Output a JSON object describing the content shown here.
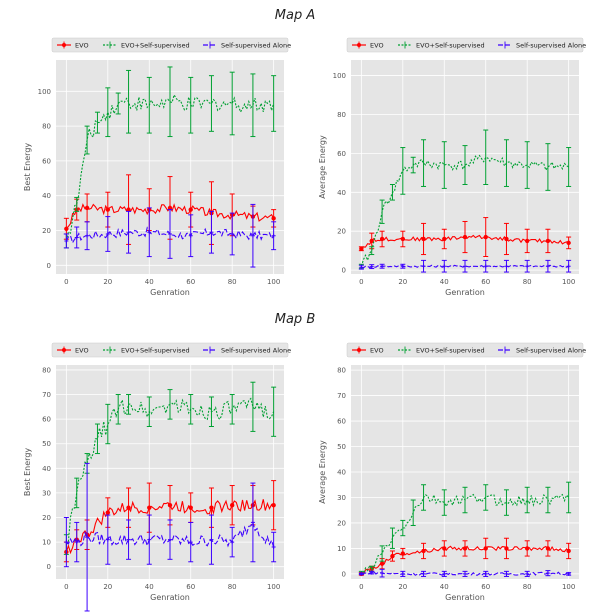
{
  "titles": [
    "Map A",
    "Map B"
  ],
  "colors": {
    "evo": "#ff0000",
    "evo_ss": "#00a032",
    "ss_alone": "#3c00ff"
  },
  "chart_data": [
    {
      "type": "line",
      "title": "",
      "xlabel": "Genration",
      "ylabel": "Best Energy",
      "xlim": [
        -5,
        105
      ],
      "ylim": [
        -5,
        118
      ],
      "xticks": [
        0,
        20,
        40,
        60,
        80,
        100
      ],
      "yticks": [
        0,
        20,
        40,
        60,
        80,
        100
      ],
      "legend_position": "top",
      "series": [
        {
          "name": "EVO",
          "x": [
            0,
            5,
            10,
            20,
            30,
            40,
            50,
            60,
            70,
            80,
            90,
            100
          ],
          "y": [
            21,
            32,
            33,
            32,
            32,
            32,
            33,
            32,
            30,
            29,
            28,
            27
          ],
          "err": [
            6,
            6,
            8,
            10,
            20,
            12,
            18,
            10,
            18,
            12,
            6,
            5
          ]
        },
        {
          "name": "EVO+Self-supervised",
          "x": [
            0,
            5,
            10,
            15,
            20,
            25,
            30,
            40,
            50,
            60,
            70,
            80,
            90,
            100
          ],
          "y": [
            14,
            35,
            72,
            82,
            88,
            93,
            94,
            92,
            94,
            92,
            93,
            93,
            92,
            93
          ],
          "err": [
            4,
            4,
            8,
            6,
            14,
            6,
            18,
            16,
            20,
            16,
            16,
            18,
            18,
            16
          ]
        },
        {
          "name": "Self-supervised Alone",
          "x": [
            0,
            5,
            10,
            20,
            30,
            40,
            50,
            60,
            70,
            80,
            90,
            100
          ],
          "y": [
            14,
            16,
            17,
            18,
            19,
            19,
            18,
            17,
            19,
            18,
            17,
            17
          ],
          "err": [
            4,
            6,
            8,
            10,
            12,
            14,
            14,
            12,
            12,
            12,
            18,
            8
          ]
        }
      ]
    },
    {
      "type": "line",
      "title": "",
      "xlabel": "Genration",
      "ylabel": "Average Energy",
      "xlim": [
        -5,
        105
      ],
      "ylim": [
        -2,
        108
      ],
      "xticks": [
        0,
        20,
        40,
        60,
        80,
        100
      ],
      "yticks": [
        0,
        20,
        40,
        60,
        80,
        100
      ],
      "legend_position": "top",
      "series": [
        {
          "name": "EVO",
          "x": [
            0,
            5,
            10,
            20,
            30,
            40,
            50,
            60,
            70,
            80,
            90,
            100
          ],
          "y": [
            11,
            15,
            16,
            16,
            16,
            16,
            17,
            17,
            16,
            15,
            15,
            14
          ],
          "err": [
            1,
            4,
            4,
            4,
            8,
            5,
            8,
            10,
            8,
            6,
            6,
            3
          ]
        },
        {
          "name": "EVO+Self-supervised",
          "x": [
            0,
            5,
            10,
            15,
            20,
            25,
            30,
            40,
            50,
            60,
            70,
            80,
            90,
            100
          ],
          "y": [
            2,
            10,
            30,
            40,
            51,
            54,
            55,
            54,
            54,
            58,
            55,
            54,
            53,
            53
          ],
          "err": [
            1,
            2,
            6,
            4,
            12,
            4,
            12,
            12,
            10,
            14,
            12,
            12,
            12,
            10
          ]
        },
        {
          "name": "Self-supervised Alone",
          "x": [
            0,
            5,
            10,
            20,
            30,
            40,
            50,
            60,
            70,
            80,
            90,
            100
          ],
          "y": [
            1.5,
            1.8,
            2,
            2,
            2,
            2,
            2,
            2,
            2,
            2,
            2,
            2
          ],
          "err": [
            1,
            1,
            1,
            1,
            3,
            3,
            3,
            3,
            3,
            3,
            3,
            3
          ]
        }
      ]
    },
    {
      "type": "line",
      "title": "",
      "xlabel": "Genration",
      "ylabel": "Best Energy",
      "xlim": [
        -5,
        105
      ],
      "ylim": [
        -5,
        82
      ],
      "xticks": [
        0,
        20,
        40,
        60,
        80,
        100
      ],
      "yticks": [
        0,
        10,
        20,
        30,
        40,
        50,
        60,
        70,
        80
      ],
      "legend_position": "top",
      "series": [
        {
          "name": "EVO",
          "x": [
            0,
            5,
            10,
            20,
            30,
            40,
            50,
            60,
            70,
            80,
            90,
            100
          ],
          "y": [
            6,
            11,
            13,
            22,
            24,
            24,
            25,
            24,
            24,
            25,
            25,
            25
          ],
          "err": [
            4,
            4,
            6,
            6,
            8,
            10,
            8,
            6,
            8,
            8,
            8,
            10
          ]
        },
        {
          "name": "EVO+Self-supervised",
          "x": [
            0,
            5,
            10,
            15,
            20,
            25,
            30,
            40,
            50,
            60,
            70,
            80,
            90,
            100
          ],
          "y": [
            9,
            30,
            42,
            52,
            58,
            64,
            66,
            63,
            66,
            64,
            63,
            64,
            65,
            63
          ],
          "err": [
            4,
            6,
            4,
            6,
            8,
            6,
            4,
            6,
            6,
            6,
            6,
            6,
            10,
            10
          ]
        },
        {
          "name": "Self-supervised Alone",
          "x": [
            0,
            5,
            10,
            20,
            30,
            40,
            50,
            60,
            70,
            80,
            90,
            100
          ],
          "y": [
            10,
            10,
            12,
            11,
            11,
            11,
            11,
            10,
            11,
            10,
            18,
            8
          ],
          "err": [
            10,
            8,
            30,
            10,
            8,
            10,
            8,
            8,
            10,
            6,
            16,
            6
          ]
        }
      ]
    },
    {
      "type": "line",
      "title": "",
      "xlabel": "Genration",
      "ylabel": "Average Energy",
      "xlim": [
        -5,
        105
      ],
      "ylim": [
        -2,
        82
      ],
      "xticks": [
        0,
        20,
        40,
        60,
        80,
        100
      ],
      "yticks": [
        0,
        10,
        20,
        30,
        40,
        50,
        60,
        70,
        80
      ],
      "legend_position": "top",
      "series": [
        {
          "name": "EVO",
          "x": [
            0,
            5,
            10,
            15,
            20,
            30,
            40,
            50,
            60,
            70,
            80,
            90,
            100
          ],
          "y": [
            0,
            2,
            4,
            7,
            8,
            9,
            10,
            10,
            10,
            10,
            10,
            10,
            9
          ],
          "err": [
            0.5,
            1,
            2,
            2,
            2,
            3,
            3,
            3,
            4,
            4,
            3,
            3,
            3
          ]
        },
        {
          "name": "EVO+Self-supervised",
          "x": [
            0,
            5,
            10,
            15,
            20,
            25,
            30,
            40,
            50,
            60,
            70,
            80,
            90,
            100
          ],
          "y": [
            0.5,
            2,
            8,
            14,
            18,
            24,
            30,
            28,
            29,
            30,
            28,
            29,
            29,
            30
          ],
          "err": [
            0.5,
            1,
            3,
            4,
            3,
            5,
            5,
            5,
            5,
            5,
            5,
            5,
            5,
            6
          ]
        },
        {
          "name": "Self-supervised Alone",
          "x": [
            0,
            5,
            10,
            20,
            30,
            40,
            50,
            60,
            70,
            80,
            90,
            100
          ],
          "y": [
            0,
            0.5,
            0.3,
            0,
            0,
            0,
            0,
            0,
            0,
            0,
            0.3,
            0
          ],
          "err": [
            0.3,
            0.5,
            1.5,
            1,
            1,
            1,
            1,
            1,
            1,
            1,
            1,
            0.5
          ]
        }
      ]
    }
  ]
}
